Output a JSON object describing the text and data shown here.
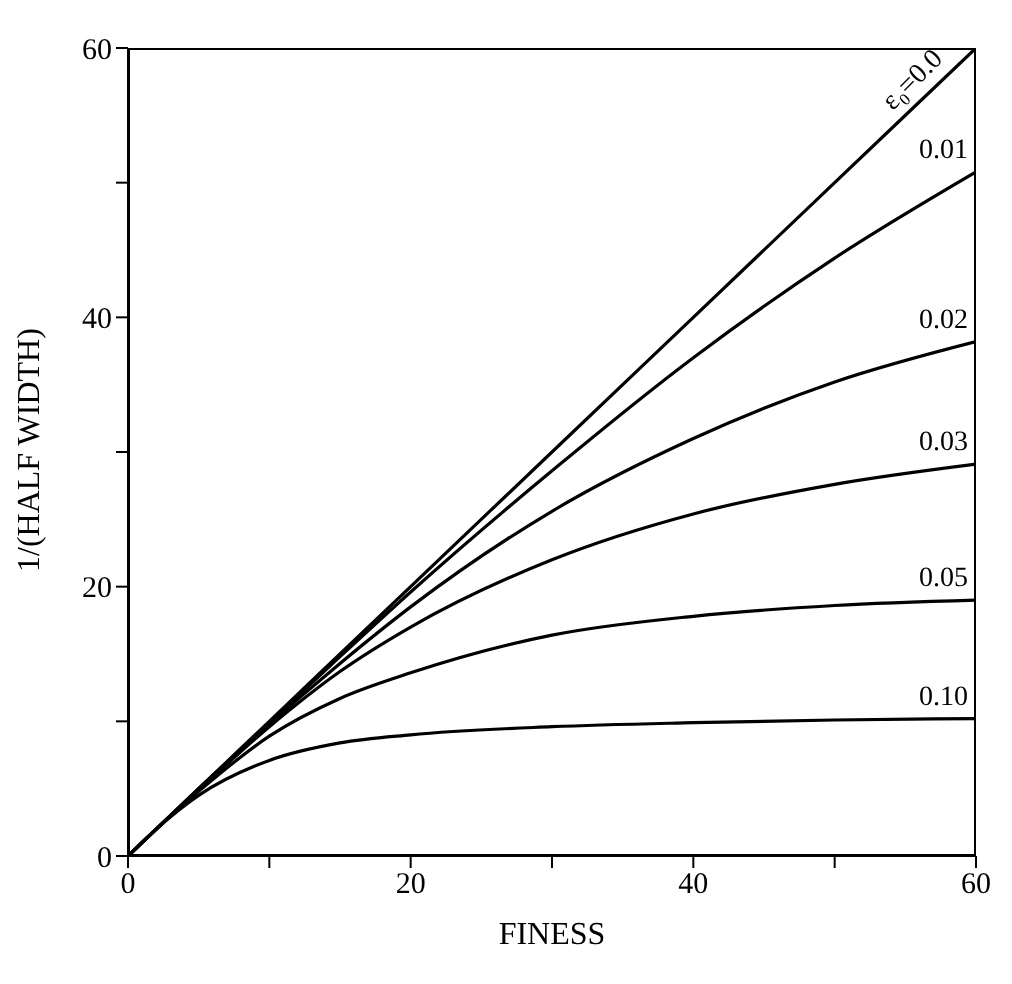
{
  "chart_data": {
    "type": "line",
    "xlabel": "FINESS",
    "ylabel": "1/(HALF WIDTH)",
    "x": [
      0,
      2,
      5,
      10,
      15,
      20,
      30,
      40,
      50,
      60
    ],
    "series": [
      {
        "name": "ε₀=0.0",
        "color": "#000000",
        "values": [
          0,
          2,
          5,
          10,
          15,
          20,
          30,
          40,
          50,
          60
        ]
      },
      {
        "name": "0.01",
        "color": "#000000",
        "values": [
          0,
          2,
          5,
          9.9,
          14.8,
          19.6,
          28.6,
          37.0,
          44.4,
          50.8
        ]
      },
      {
        "name": "0.02",
        "color": "#000000",
        "values": [
          0,
          2,
          5,
          9.8,
          14.3,
          18.5,
          25.6,
          31.0,
          35.2,
          38.2
        ]
      },
      {
        "name": "0.03",
        "color": "#000000",
        "values": [
          0,
          2,
          4.9,
          9.6,
          13.7,
          17.0,
          22.0,
          25.4,
          27.6,
          29.1
        ]
      },
      {
        "name": "0.05",
        "color": "#000000",
        "values": [
          0,
          2,
          4.8,
          8.9,
          11.7,
          13.6,
          16.4,
          17.8,
          18.6,
          19.0
        ]
      },
      {
        "name": "0.10",
        "color": "#000000",
        "values": [
          0,
          2,
          4.5,
          7.1,
          8.4,
          9.0,
          9.6,
          9.9,
          10.1,
          10.2
        ]
      }
    ],
    "xlim": [
      0,
      60
    ],
    "ylim": [
      0,
      60
    ],
    "xticks": [
      0,
      {
        "value": 10,
        "label": null
      },
      20,
      {
        "value": 30,
        "label": null
      },
      40,
      {
        "value": 50,
        "label": null
      },
      60
    ],
    "yticks": [
      0,
      {
        "value": 10,
        "label": null
      },
      20,
      {
        "value": 30,
        "label": null
      },
      40,
      {
        "value": 50,
        "label": null
      },
      60
    ],
    "grid": false,
    "legend": false,
    "marker": "none",
    "line_style": "solid"
  }
}
